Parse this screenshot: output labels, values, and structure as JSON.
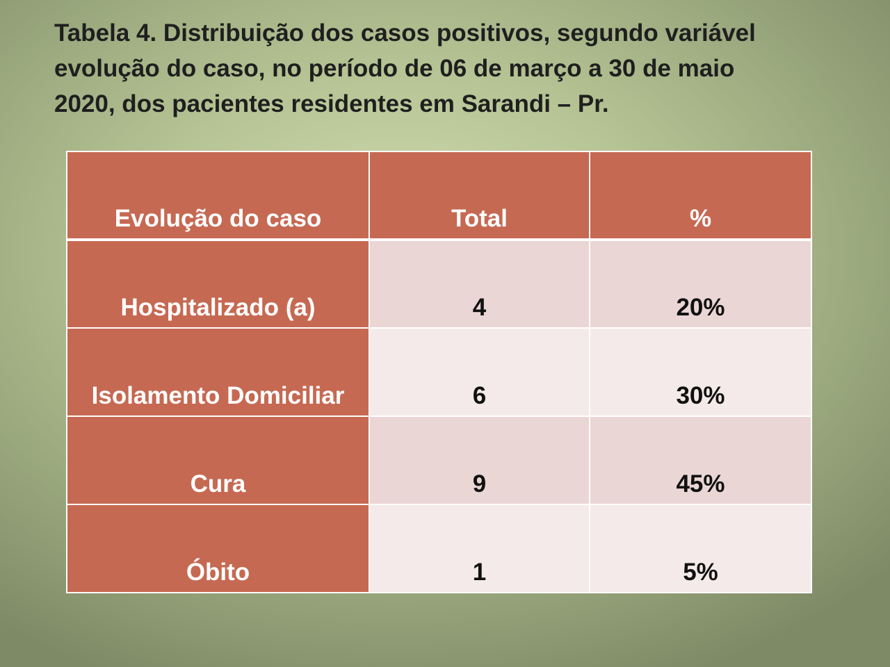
{
  "slide": {
    "title_lines": [
      "Tabela 4. Distribuição dos casos positivos, segundo variável",
      "evolução do caso, no período de 06 de março a 30 de maio",
      "2020, dos pacientes residentes em Sarandi – Pr."
    ]
  },
  "table": {
    "headers": [
      "Evolução do caso",
      "Total",
      "%"
    ],
    "rows": [
      {
        "label": "Hospitalizado (a)",
        "total": "4",
        "percent": "20%"
      },
      {
        "label": "Isolamento Domiciliar",
        "total": "6",
        "percent": "30%"
      },
      {
        "label": "Cura",
        "total": "9",
        "percent": "45%"
      },
      {
        "label": "Óbito",
        "total": "1",
        "percent": "5%"
      }
    ]
  },
  "colors": {
    "header_fill": "#c66952",
    "row_fill_odd": "#ead6d5",
    "row_fill_even": "#f4eae9",
    "background": "#b6c394"
  }
}
